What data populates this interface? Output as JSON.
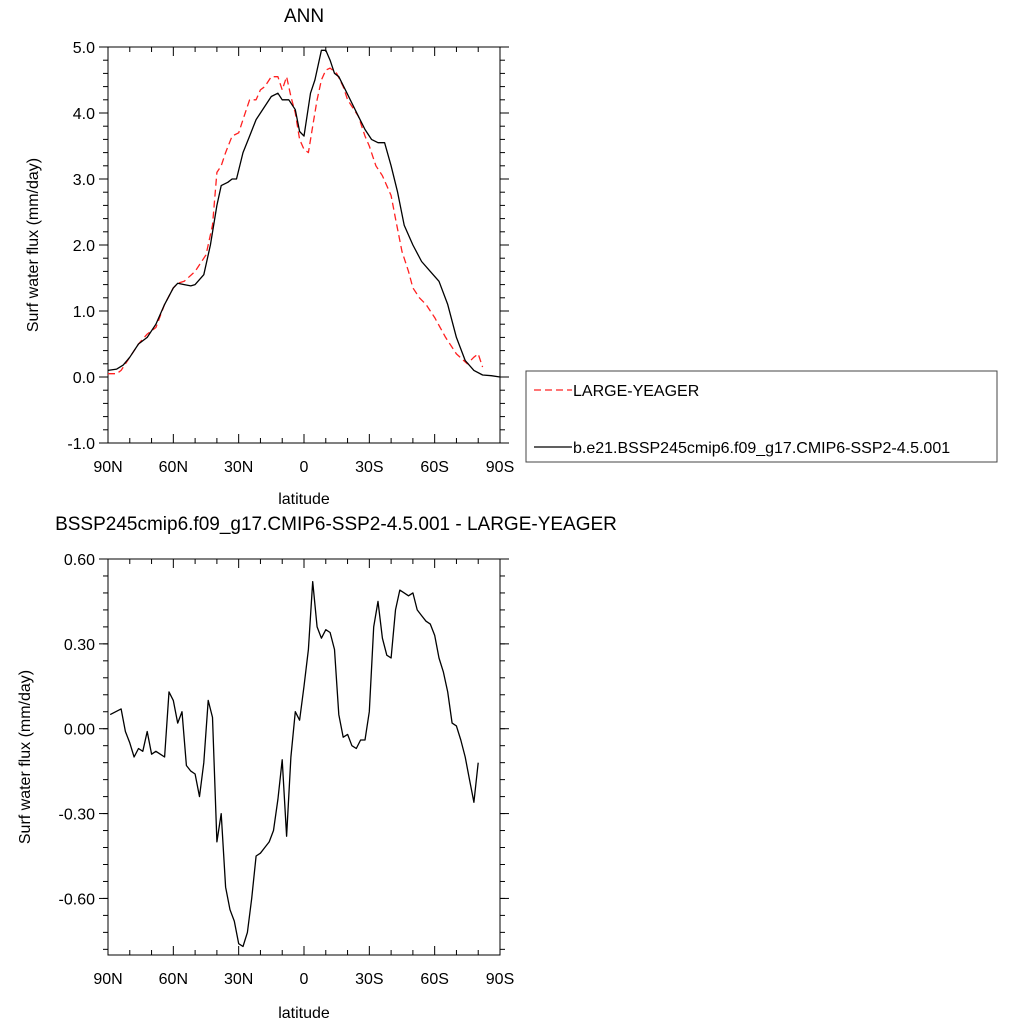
{
  "colors": {
    "large_yeager": "#ff2020",
    "model": "#000000",
    "frame": "#000000",
    "legend_border": "#444444"
  },
  "chart_data": [
    {
      "type": "line",
      "title": "ANN",
      "xlabel": "latitude",
      "ylabel": "Surf water flux (mm/day)",
      "xlim": [
        90,
        -90
      ],
      "ylim": [
        -1.0,
        5.0
      ],
      "xticks": [
        {
          "value": 90,
          "label": "90N"
        },
        {
          "value": 60,
          "label": "60N"
        },
        {
          "value": 30,
          "label": "30N"
        },
        {
          "value": 0,
          "label": "0"
        },
        {
          "value": -30,
          "label": "30S"
        },
        {
          "value": -60,
          "label": "60S"
        },
        {
          "value": -90,
          "label": "90S"
        }
      ],
      "yticks": [
        {
          "value": 5.0,
          "label": "5.0"
        },
        {
          "value": 4.0,
          "label": "4.0"
        },
        {
          "value": 3.0,
          "label": "3.0"
        },
        {
          "value": 2.0,
          "label": "2.0"
        },
        {
          "value": 1.0,
          "label": "1.0"
        },
        {
          "value": 0.0,
          "label": "0.0"
        },
        {
          "value": -1.0,
          "label": "-1.0"
        }
      ],
      "grid": false,
      "legend": "right",
      "series": [
        {
          "name": "LARGE-YEAGER",
          "color": "#ff2020",
          "dash": "dashed",
          "x": [
            90,
            86,
            84,
            80,
            76,
            72,
            68,
            64,
            60,
            58,
            55,
            50,
            45,
            42,
            40,
            38,
            36,
            33,
            30,
            28,
            25,
            22,
            20,
            18,
            15,
            12,
            10,
            8,
            6,
            4,
            2,
            0,
            -2,
            -4,
            -6,
            -8,
            -10,
            -12,
            -15,
            -18,
            -20,
            -22,
            -25,
            -28,
            -30,
            -33,
            -36,
            -40,
            -42,
            -45,
            -48,
            -50,
            -53,
            -56,
            -60,
            -65,
            -70,
            -75,
            -78,
            -80,
            -82
          ],
          "y": [
            0.05,
            0.05,
            0.1,
            0.3,
            0.5,
            0.65,
            0.75,
            1.1,
            1.35,
            1.42,
            1.45,
            1.6,
            1.85,
            2.3,
            3.1,
            3.2,
            3.4,
            3.65,
            3.7,
            3.9,
            4.2,
            4.2,
            4.35,
            4.4,
            4.55,
            4.55,
            4.35,
            4.55,
            4.25,
            4.0,
            3.6,
            3.45,
            3.4,
            3.8,
            4.2,
            4.5,
            4.65,
            4.68,
            4.6,
            4.4,
            4.2,
            4.1,
            3.95,
            3.65,
            3.5,
            3.2,
            3.05,
            2.75,
            2.4,
            1.9,
            1.6,
            1.35,
            1.2,
            1.1,
            0.9,
            0.6,
            0.35,
            0.2,
            0.3,
            0.35,
            0.15
          ]
        },
        {
          "name": "b.e21.BSSP245cmip6.f09_g17.CMIP6-SSP2-4.5.001",
          "color": "#000000",
          "dash": "solid",
          "x": [
            90,
            86,
            83,
            80,
            76,
            72,
            68,
            64,
            60,
            58,
            55,
            52,
            50,
            46,
            43,
            40,
            38,
            35,
            33,
            31,
            28,
            25,
            22,
            18,
            15,
            12,
            10,
            7,
            4,
            2,
            0,
            -3,
            -5,
            -8,
            -10,
            -12,
            -14,
            -16,
            -19,
            -22,
            -25,
            -28,
            -31,
            -34,
            -37,
            -40,
            -43,
            -46,
            -50,
            -54,
            -58,
            -62,
            -66,
            -70,
            -74,
            -78,
            -82,
            -86,
            -90
          ],
          "y": [
            0.1,
            0.12,
            0.18,
            0.3,
            0.5,
            0.6,
            0.8,
            1.1,
            1.35,
            1.42,
            1.4,
            1.38,
            1.4,
            1.55,
            2.0,
            2.6,
            2.9,
            2.95,
            3.0,
            3.0,
            3.4,
            3.65,
            3.9,
            4.1,
            4.25,
            4.3,
            4.2,
            4.2,
            4.05,
            3.72,
            3.65,
            4.3,
            4.5,
            4.95,
            4.95,
            4.8,
            4.6,
            4.55,
            4.35,
            4.15,
            3.95,
            3.75,
            3.6,
            3.55,
            3.55,
            3.2,
            2.8,
            2.3,
            2.0,
            1.75,
            1.6,
            1.45,
            1.1,
            0.6,
            0.25,
            0.1,
            0.03,
            0.02,
            0.0
          ]
        }
      ]
    },
    {
      "type": "line",
      "title": "BSSP245cmip6.f09_g17.CMIP6-SSP2-4.5.001 - LARGE-YEAGER",
      "xlabel": "latitude",
      "ylabel": "Surf water flux (mm/day)",
      "xlim": [
        90,
        -90
      ],
      "ylim": [
        -0.8,
        0.6
      ],
      "xticks": [
        {
          "value": 90,
          "label": "90N"
        },
        {
          "value": 60,
          "label": "60N"
        },
        {
          "value": 30,
          "label": "30N"
        },
        {
          "value": 0,
          "label": "0"
        },
        {
          "value": -30,
          "label": "30S"
        },
        {
          "value": -60,
          "label": "60S"
        },
        {
          "value": -90,
          "label": "90S"
        }
      ],
      "yticks": [
        {
          "value": 0.6,
          "label": "0.60"
        },
        {
          "value": 0.3,
          "label": "0.30"
        },
        {
          "value": 0.0,
          "label": "0.00"
        },
        {
          "value": -0.3,
          "label": "-0.30"
        },
        {
          "value": -0.6,
          "label": "-0.60"
        }
      ],
      "grid": false,
      "legend": "none",
      "series": [
        {
          "color": "#000000",
          "dash": "solid",
          "x": [
            89,
            84,
            82,
            80,
            78,
            76,
            74,
            72,
            70,
            68,
            66,
            64,
            62,
            60,
            58,
            56,
            54,
            52,
            50,
            48,
            46,
            44,
            42,
            40,
            38,
            36,
            34,
            32,
            30,
            28,
            26,
            24,
            22,
            20,
            18,
            16,
            14,
            12,
            10,
            8,
            6,
            4,
            2,
            0,
            -2,
            -4,
            -6,
            -8,
            -10,
            -12,
            -14,
            -16,
            -18,
            -20,
            -22,
            -24,
            -26,
            -28,
            -30,
            -32,
            -34,
            -36,
            -38,
            -40,
            -42,
            -44,
            -46,
            -48,
            -50,
            -52,
            -54,
            -56,
            -58,
            -60,
            -62,
            -64,
            -66,
            -68,
            -70,
            -72,
            -74,
            -76,
            -78,
            -80
          ],
          "y": [
            0.05,
            0.07,
            -0.01,
            -0.05,
            -0.1,
            -0.07,
            -0.08,
            -0.01,
            -0.09,
            -0.08,
            -0.09,
            -0.1,
            0.13,
            0.1,
            0.02,
            0.06,
            -0.13,
            -0.15,
            -0.16,
            -0.24,
            -0.12,
            0.1,
            0.04,
            -0.4,
            -0.3,
            -0.56,
            -0.64,
            -0.68,
            -0.76,
            -0.77,
            -0.72,
            -0.6,
            -0.45,
            -0.44,
            -0.42,
            -0.4,
            -0.36,
            -0.25,
            -0.11,
            -0.38,
            -0.1,
            0.06,
            0.03,
            0.15,
            0.28,
            0.52,
            0.36,
            0.32,
            0.35,
            0.34,
            0.28,
            0.05,
            -0.03,
            -0.02,
            -0.06,
            -0.07,
            -0.04,
            -0.04,
            0.06,
            0.36,
            0.45,
            0.32,
            0.26,
            0.25,
            0.42,
            0.49,
            0.48,
            0.47,
            0.48,
            0.42,
            0.4,
            0.38,
            0.37,
            0.33,
            0.25,
            0.2,
            0.13,
            0.02,
            0.01,
            -0.04,
            -0.1,
            -0.18,
            -0.26,
            -0.12
          ]
        }
      ]
    }
  ]
}
